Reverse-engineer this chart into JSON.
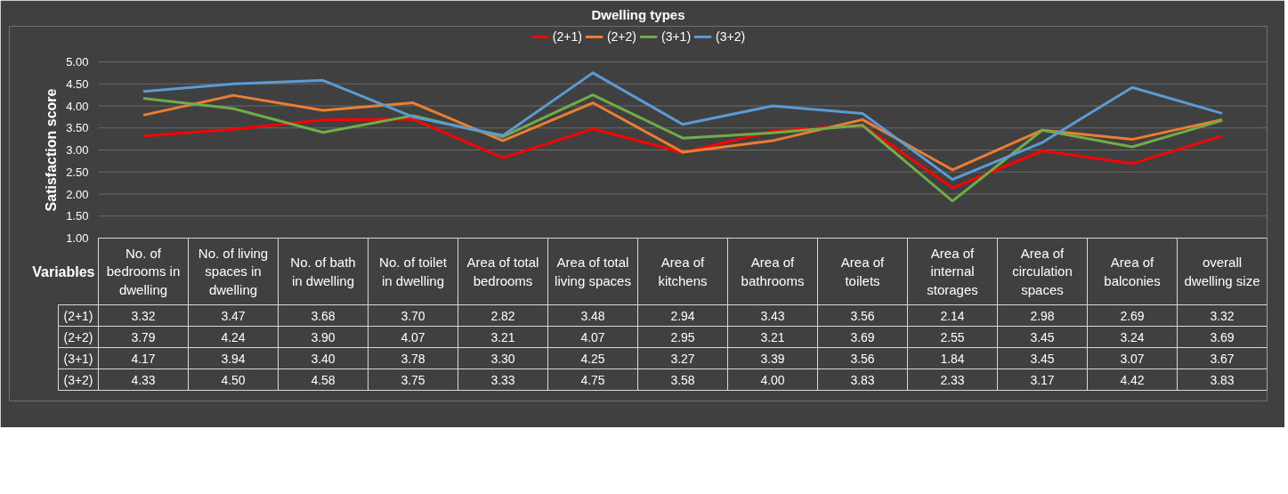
{
  "chart_data": {
    "type": "line",
    "title": "Dwelling types",
    "ylabel": "Satisfaction score",
    "xlabel": "Variables",
    "categories": [
      "No. of bedrooms in dwelling",
      "No. of living spaces in dwelling",
      "No. of bath in dwelling",
      "No. of toilet in dwelling",
      "Area of total bedrooms",
      "Area of total living spaces",
      "Area of kitchens",
      "Area of bathrooms",
      "Area of toilets",
      "Area of internal storages",
      "Area of circulation spaces",
      "Area of balconies",
      "overall dwelling size"
    ],
    "series": [
      {
        "name": "(2+1)",
        "color": "#ff0000",
        "values": [
          3.32,
          3.47,
          3.68,
          3.7,
          2.82,
          3.48,
          2.94,
          3.43,
          3.56,
          2.14,
          2.98,
          2.69,
          3.32
        ],
        "value_labels": [
          "3.32",
          "3.47",
          "3.68",
          "3.70",
          "2.82",
          "3.48",
          "2.94",
          "3.43",
          "3.56",
          "2.14",
          "2.98",
          "2.69",
          "3.32"
        ]
      },
      {
        "name": "(2+2)",
        "color": "#ed7d31",
        "values": [
          3.79,
          4.24,
          3.9,
          4.07,
          3.21,
          4.07,
          2.95,
          3.21,
          3.69,
          2.55,
          3.45,
          3.24,
          3.69
        ],
        "value_labels": [
          "3.79",
          "4.24",
          "3.90",
          "4.07",
          "3.21",
          "4.07",
          "2.95",
          "3.21",
          "3.69",
          "2.55",
          "3.45",
          "3.24",
          "3.69"
        ]
      },
      {
        "name": "(3+1)",
        "color": "#70ad47",
        "values": [
          4.17,
          3.94,
          3.4,
          3.78,
          3.3,
          4.25,
          3.27,
          3.39,
          3.56,
          1.84,
          3.45,
          3.07,
          3.67
        ],
        "value_labels": [
          "4.17",
          "3.94",
          "3.40",
          "3.78",
          "3.30",
          "4.25",
          "3.27",
          "3.39",
          "3.56",
          "1.84",
          "3.45",
          "3.07",
          "3.67"
        ]
      },
      {
        "name": "(3+2)",
        "color": "#5b9bd5",
        "values": [
          4.33,
          4.5,
          4.58,
          3.75,
          3.33,
          4.75,
          3.58,
          4.0,
          3.83,
          2.33,
          3.17,
          4.42,
          3.83
        ],
        "value_labels": [
          "4.33",
          "4.50",
          "4.58",
          "3.75",
          "3.33",
          "4.75",
          "3.58",
          "4.00",
          "3.83",
          "2.33",
          "3.17",
          "4.42",
          "3.83"
        ]
      }
    ],
    "ylim": [
      1,
      5
    ],
    "yticks": [
      {
        "value": 1,
        "label": "1.00"
      },
      {
        "value": 1.5,
        "label": "1.50"
      },
      {
        "value": 2,
        "label": "2.00"
      },
      {
        "value": 2.5,
        "label": "2.50"
      },
      {
        "value": 3,
        "label": "3.00"
      },
      {
        "value": 3.5,
        "label": "3.50"
      },
      {
        "value": 4,
        "label": "4.00"
      },
      {
        "value": 4.5,
        "label": "4.50"
      },
      {
        "value": 5,
        "label": "5.00"
      }
    ],
    "grid": "y",
    "legend": "top",
    "marker": "none",
    "line_style": "solid"
  }
}
